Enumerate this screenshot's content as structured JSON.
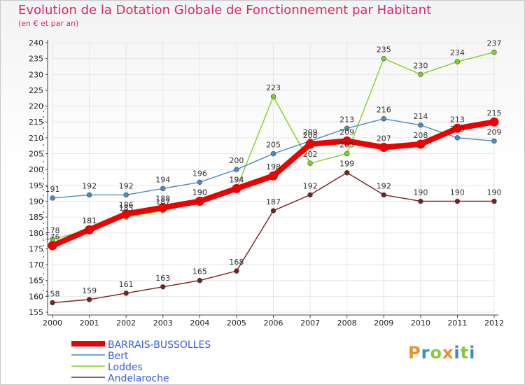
{
  "header": {
    "title": "Evolution de la Dotation Globale de Fonctionnement par Habitant",
    "subtitle": "(en € et par an)"
  },
  "logo": {
    "letters": [
      "P",
      "r",
      "o",
      "x",
      "i",
      "t",
      "i"
    ],
    "colors": [
      "#e8912a",
      "#2f8fd8",
      "#8cc63f",
      "#e8912a",
      "#2f8fd8",
      "#8cc63f",
      "#2f8fd8"
    ]
  },
  "chart_data": {
    "type": "line",
    "title": "Evolution de la Dotation Globale de Fonctionnement par Habitant",
    "subtitle": "(en € et par an)",
    "xlabel": "",
    "ylabel": "",
    "categories": [
      "2000",
      "2001",
      "2002",
      "2003",
      "2004",
      "2005",
      "2006",
      "2007",
      "2008",
      "2009",
      "2010",
      "2011",
      "2012"
    ],
    "ylim": [
      155,
      240
    ],
    "yticks": [
      155,
      160,
      165,
      170,
      175,
      180,
      185,
      190,
      195,
      200,
      205,
      210,
      215,
      220,
      225,
      230,
      235,
      240
    ],
    "grid": true,
    "legend_position": "bottom-left",
    "series": [
      {
        "name": "BARRAIS-BUSSOLLES",
        "color": "#ee0000",
        "highlight": true,
        "values": [
          176,
          181,
          186,
          188,
          190,
          194,
          198,
          208,
          209,
          207,
          208,
          213,
          215
        ]
      },
      {
        "name": "Bert",
        "color": "#4a8cc8",
        "values": [
          191,
          192,
          192,
          194,
          196,
          200,
          205,
          209,
          213,
          216,
          214,
          210,
          209
        ]
      },
      {
        "name": "Loddes",
        "color": "#7ed321",
        "values": [
          178,
          181,
          185,
          187,
          190,
          194,
          223,
          202,
          205,
          235,
          230,
          234,
          237
        ]
      },
      {
        "name": "Andelaroche",
        "color": "#7a1e1e",
        "values": [
          158,
          159,
          161,
          163,
          165,
          168,
          187,
          192,
          199,
          192,
          190,
          190,
          190
        ]
      }
    ]
  }
}
